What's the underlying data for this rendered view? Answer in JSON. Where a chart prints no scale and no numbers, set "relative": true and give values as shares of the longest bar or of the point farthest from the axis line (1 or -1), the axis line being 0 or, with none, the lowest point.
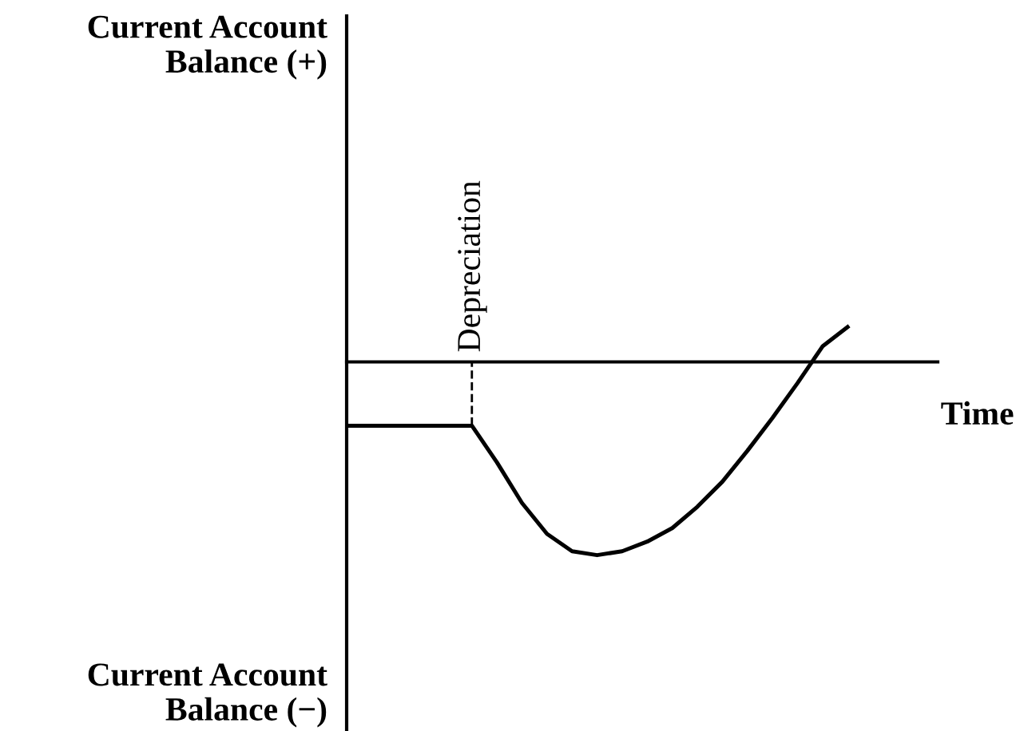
{
  "chart_data": {
    "type": "line",
    "relative": true,
    "xlabel": "Time",
    "categories": [
      null,
      null,
      null,
      null,
      null,
      null,
      null,
      null,
      null,
      null,
      null,
      null,
      null,
      null,
      null,
      null,
      null,
      null,
      null,
      null,
      null
    ],
    "series": [
      {
        "color": "#000000",
        "values": [
          -0.33,
          -0.33,
          -0.33,
          -0.33,
          -0.33,
          -0.33,
          -0.52,
          -0.73,
          -0.89,
          -0.98,
          -1,
          -0.98,
          -0.93,
          -0.86,
          -0.75,
          -0.62,
          -0.46,
          -0.29,
          -0.11,
          0.08,
          0.18
        ]
      }
    ],
    "annotations": [
      "Current Account\nBalance (+)",
      "Current Account\nBalance (−)",
      "Depreciation"
    ],
    "grid": false,
    "legend": false,
    "marker": "none",
    "line_style": "solid"
  }
}
